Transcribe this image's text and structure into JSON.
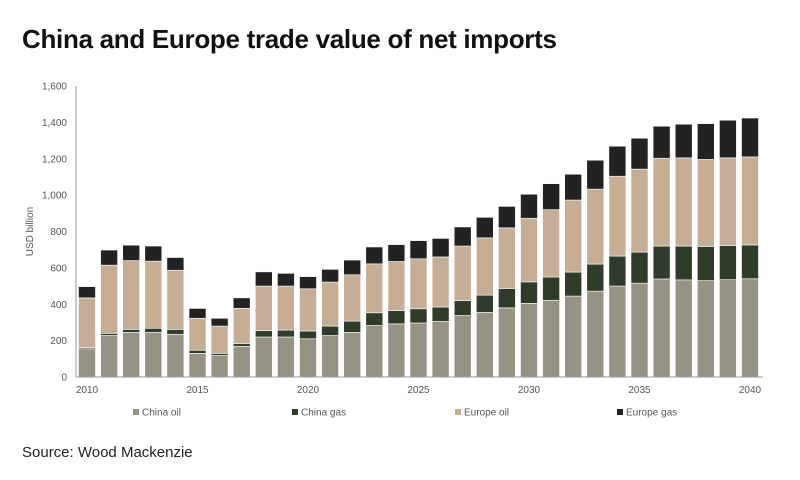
{
  "title": "China and Europe trade value of net imports",
  "source": "Source: Wood Mackenzie",
  "chart_data": {
    "type": "bar",
    "stacked": true,
    "title": "China and Europe trade value of net imports",
    "xlabel": "",
    "ylabel": "USD billion",
    "ylim": [
      0,
      1600
    ],
    "yticks": [
      0,
      200,
      400,
      600,
      800,
      1000,
      1200,
      1400,
      1600
    ],
    "ytick_labels": [
      "0",
      "200",
      "400",
      "600",
      "800",
      "1,000",
      "1,200",
      "1,400",
      "1,600"
    ],
    "xtick_labels": [
      "2010",
      "2015",
      "2020",
      "2025",
      "2030",
      "2035",
      "2040"
    ],
    "categories": [
      2010,
      2011,
      2012,
      2013,
      2014,
      2015,
      2016,
      2017,
      2018,
      2019,
      2020,
      2021,
      2022,
      2023,
      2024,
      2025,
      2026,
      2027,
      2028,
      2029,
      2030,
      2031,
      2032,
      2033,
      2034,
      2035,
      2036,
      2037,
      2038,
      2039,
      2040
    ],
    "grid": false,
    "legend_position": "bottom",
    "series": [
      {
        "name": "China oil",
        "color": "#969385",
        "values": [
          155,
          228,
          245,
          245,
          235,
          130,
          118,
          168,
          220,
          220,
          210,
          228,
          245,
          283,
          292,
          297,
          305,
          338,
          355,
          380,
          405,
          422,
          445,
          472,
          500,
          516,
          539,
          534,
          530,
          535,
          540
        ]
      },
      {
        "name": "China gas",
        "color": "#2f3c2a",
        "values": [
          7,
          12,
          17,
          23,
          27,
          17,
          12,
          15,
          35,
          38,
          43,
          52,
          62,
          70,
          73,
          78,
          80,
          82,
          95,
          107,
          118,
          128,
          132,
          149,
          165,
          171,
          181,
          186,
          188,
          187,
          186
        ]
      },
      {
        "name": "Europe oil",
        "color": "#c6ae96",
        "values": [
          273,
          375,
          378,
          369,
          325,
          176,
          150,
          195,
          245,
          242,
          232,
          242,
          255,
          269,
          270,
          275,
          275,
          300,
          315,
          333,
          350,
          370,
          396,
          412,
          439,
          456,
          483,
          485,
          478,
          483,
          484
        ]
      },
      {
        "name": "Europe gas",
        "color": "#222222",
        "values": [
          62,
          83,
          85,
          83,
          70,
          54,
          43,
          57,
          78,
          70,
          67,
          70,
          81,
          93,
          93,
          100,
          102,
          105,
          113,
          118,
          132,
          143,
          142,
          159,
          165,
          170,
          176,
          185,
          197,
          207,
          214
        ]
      }
    ]
  }
}
